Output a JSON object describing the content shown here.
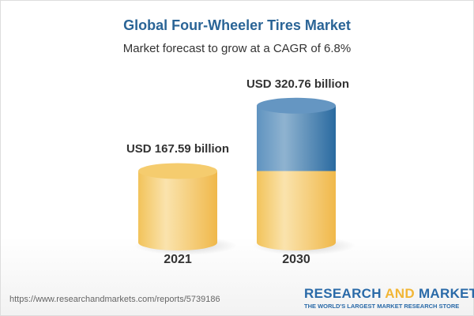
{
  "chart_data": {
    "type": "bar",
    "style": "3d-cylinder",
    "title": "Global Four-Wheeler Tires Market",
    "subtitle": "Market forecast to grow at a CAGR of 6.8%",
    "categories": [
      "2021",
      "2030"
    ],
    "values": [
      167.59,
      320.76
    ],
    "data_labels": [
      "USD 167.59 billion",
      "USD 320.76 billion"
    ],
    "colors": {
      "base": "#f3c45a",
      "growth": "#4a86b8"
    }
  },
  "footer": {
    "url": "https://www.researchandmarkets.com/reports/5739186",
    "logo_line1_a": "RESEARCH ",
    "logo_line1_b": "AND",
    "logo_line1_c": " MARKETS",
    "logo_line2": "THE WORLD'S LARGEST MARKET RESEARCH STORE"
  }
}
